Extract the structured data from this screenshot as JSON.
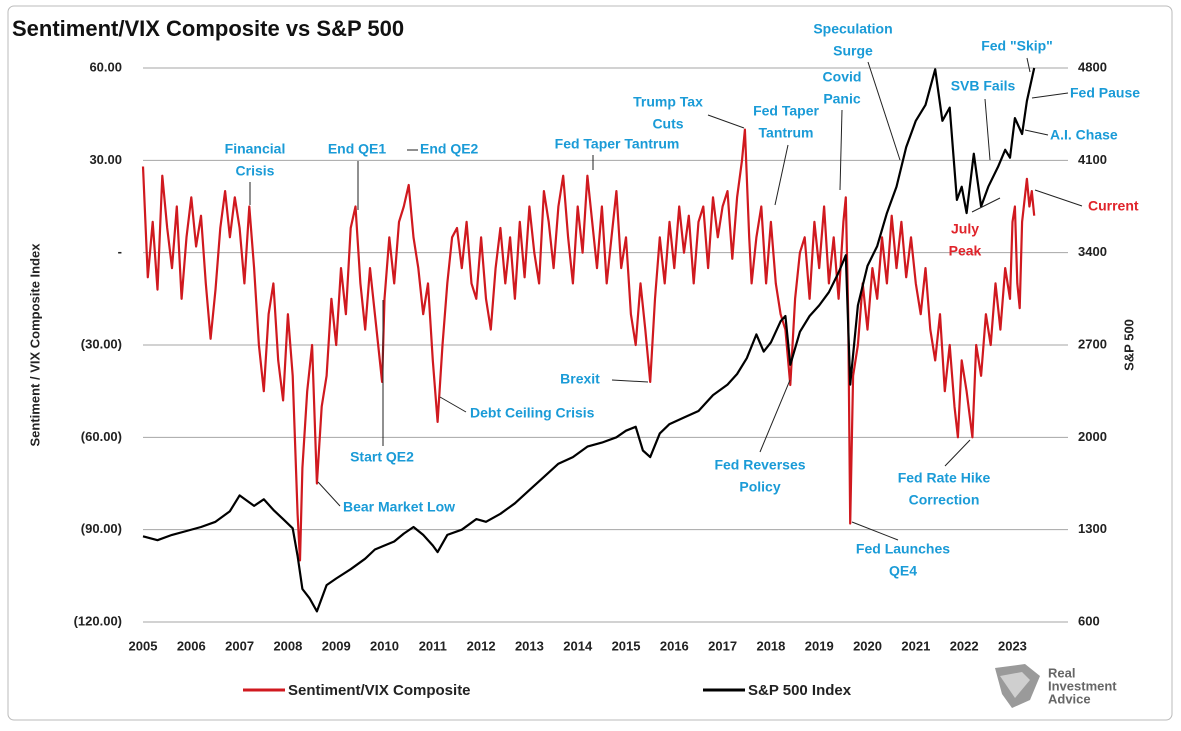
{
  "chart_data": {
    "type": "line",
    "title": "Sentiment/VIX Composite vs S&P 500",
    "ylabel": "Sentiment / VIX Composite Index",
    "y2label": "S&P 500",
    "xlim": [
      2005,
      2024.15
    ],
    "xticks": [
      2005,
      2006,
      2007,
      2008,
      2009,
      2010,
      2011,
      2012,
      2013,
      2014,
      2015,
      2016,
      2017,
      2018,
      2019,
      2020,
      2021,
      2022,
      2023
    ],
    "ylim": [
      -120,
      60
    ],
    "yticks": [
      {
        "value": 60,
        "label": "60.00"
      },
      {
        "value": 30,
        "label": "30.00"
      },
      {
        "value": 0,
        "label": "-"
      },
      {
        "value": -30,
        "label": "(30.00)"
      },
      {
        "value": -60,
        "label": "(60.00)"
      },
      {
        "value": -90,
        "label": "(90.00)"
      },
      {
        "value": -120,
        "label": "(120.00)"
      }
    ],
    "y2lim": [
      600,
      4800
    ],
    "y2ticks": [
      4800,
      4100,
      3400,
      2700,
      2000,
      1300,
      600
    ],
    "grid": true,
    "series": [
      {
        "name": "Sentiment/VIX Composite",
        "color": "#d0191f",
        "x": [
          2005.0,
          2005.1,
          2005.2,
          2005.3,
          2005.4,
          2005.5,
          2005.6,
          2005.7,
          2005.8,
          2005.9,
          2006.0,
          2006.1,
          2006.2,
          2006.3,
          2006.4,
          2006.5,
          2006.6,
          2006.7,
          2006.8,
          2006.9,
          2007.0,
          2007.1,
          2007.2,
          2007.3,
          2007.4,
          2007.5,
          2007.6,
          2007.7,
          2007.8,
          2007.9,
          2008.0,
          2008.1,
          2008.2,
          2008.25,
          2008.3,
          2008.4,
          2008.5,
          2008.6,
          2008.7,
          2008.8,
          2008.9,
          2009.0,
          2009.1,
          2009.2,
          2009.3,
          2009.4,
          2009.5,
          2009.6,
          2009.7,
          2009.8,
          2009.95,
          2010.0,
          2010.1,
          2010.2,
          2010.3,
          2010.4,
          2010.5,
          2010.6,
          2010.7,
          2010.8,
          2010.9,
          2011.0,
          2011.1,
          2011.2,
          2011.3,
          2011.4,
          2011.5,
          2011.6,
          2011.7,
          2011.8,
          2011.9,
          2012.0,
          2012.1,
          2012.2,
          2012.3,
          2012.4,
          2012.5,
          2012.6,
          2012.7,
          2012.8,
          2012.9,
          2013.0,
          2013.1,
          2013.2,
          2013.3,
          2013.4,
          2013.5,
          2013.6,
          2013.7,
          2013.8,
          2013.9,
          2014.0,
          2014.1,
          2014.2,
          2014.3,
          2014.4,
          2014.5,
          2014.6,
          2014.7,
          2014.8,
          2014.9,
          2015.0,
          2015.1,
          2015.2,
          2015.3,
          2015.4,
          2015.5,
          2015.6,
          2015.7,
          2015.8,
          2015.9,
          2016.0,
          2016.1,
          2016.2,
          2016.3,
          2016.4,
          2016.5,
          2016.6,
          2016.7,
          2016.8,
          2016.9,
          2017.0,
          2017.1,
          2017.2,
          2017.3,
          2017.4,
          2017.46,
          2017.55,
          2017.6,
          2017.7,
          2017.8,
          2017.9,
          2018.0,
          2018.1,
          2018.2,
          2018.3,
          2018.4,
          2018.5,
          2018.6,
          2018.7,
          2018.8,
          2018.9,
          2019.0,
          2019.1,
          2019.2,
          2019.3,
          2019.4,
          2019.5,
          2019.55,
          2019.6,
          2019.64,
          2019.7,
          2019.8,
          2019.9,
          2020.0,
          2020.1,
          2020.2,
          2020.3,
          2020.4,
          2020.5,
          2020.6,
          2020.7,
          2020.8,
          2020.9,
          2021.0,
          2021.1,
          2021.2,
          2021.3,
          2021.4,
          2021.5,
          2021.6,
          2021.7,
          2021.8,
          2021.87,
          2021.95,
          2022.05,
          2022.17,
          2022.25,
          2022.35,
          2022.45,
          2022.55,
          2022.65,
          2022.75,
          2022.85,
          2022.95,
          2023.0,
          2023.05,
          2023.1,
          2023.15,
          2023.2,
          2023.3,
          2023.35,
          2023.4,
          2023.45
        ],
        "values": [
          28,
          -8,
          10,
          -12,
          25,
          8,
          -5,
          15,
          -15,
          5,
          18,
          2,
          12,
          -10,
          -28,
          -12,
          8,
          20,
          5,
          18,
          8,
          -10,
          15,
          -5,
          -30,
          -45,
          -20,
          -10,
          -35,
          -48,
          -20,
          -40,
          -85,
          -100,
          -70,
          -45,
          -30,
          -75,
          -50,
          -40,
          -15,
          -30,
          -5,
          -20,
          8,
          15,
          -10,
          -25,
          -5,
          -20,
          -42,
          -15,
          5,
          -10,
          10,
          15,
          22,
          5,
          -5,
          -20,
          -10,
          -35,
          -55,
          -30,
          -10,
          5,
          8,
          -5,
          10,
          -10,
          -15,
          5,
          -15,
          -25,
          -5,
          8,
          -10,
          5,
          -15,
          10,
          -8,
          15,
          0,
          -10,
          20,
          10,
          -5,
          15,
          25,
          5,
          -10,
          15,
          0,
          25,
          10,
          -5,
          15,
          -10,
          5,
          20,
          -5,
          5,
          -20,
          -30,
          -10,
          -25,
          -42,
          -15,
          5,
          -10,
          10,
          -5,
          15,
          0,
          12,
          -10,
          10,
          15,
          -5,
          18,
          5,
          15,
          20,
          -2,
          18,
          30,
          40,
          5,
          -10,
          5,
          15,
          -10,
          10,
          -10,
          -20,
          -25,
          -43,
          -15,
          0,
          5,
          -15,
          10,
          -5,
          15,
          -10,
          5,
          -15,
          10,
          18,
          -20,
          -88,
          -40,
          -30,
          -10,
          -25,
          -5,
          -15,
          5,
          -10,
          12,
          -5,
          10,
          -8,
          5,
          -10,
          -20,
          -5,
          -25,
          -35,
          -20,
          -45,
          -30,
          -50,
          -60,
          -35,
          -45,
          -60,
          -30,
          -40,
          -20,
          -30,
          -10,
          -25,
          -5,
          -15,
          10,
          15,
          -10,
          -18,
          10,
          24,
          15,
          20,
          12
        ]
      },
      {
        "name": "S&P 500 Index",
        "color": "#000000",
        "axis": "y2",
        "x": [
          2005.0,
          2005.3,
          2005.6,
          2005.9,
          2006.2,
          2006.5,
          2006.8,
          2007.0,
          2007.3,
          2007.5,
          2007.7,
          2007.9,
          2008.1,
          2008.2,
          2008.3,
          2008.45,
          2008.6,
          2008.8,
          2009.0,
          2009.3,
          2009.6,
          2009.8,
          2010.0,
          2010.2,
          2010.4,
          2010.6,
          2010.8,
          2011.0,
          2011.1,
          2011.3,
          2011.6,
          2011.9,
          2012.1,
          2012.4,
          2012.7,
          2013.0,
          2013.3,
          2013.6,
          2013.9,
          2014.2,
          2014.5,
          2014.8,
          2015.0,
          2015.2,
          2015.35,
          2015.5,
          2015.7,
          2015.9,
          2016.2,
          2016.5,
          2016.8,
          2017.1,
          2017.3,
          2017.5,
          2017.7,
          2017.85,
          2018.0,
          2018.2,
          2018.3,
          2018.4,
          2018.6,
          2018.8,
          2019.0,
          2019.2,
          2019.4,
          2019.55,
          2019.64,
          2019.8,
          2020.0,
          2020.2,
          2020.4,
          2020.6,
          2020.8,
          2021.0,
          2021.2,
          2021.4,
          2021.55,
          2021.7,
          2021.85,
          2021.95,
          2022.05,
          2022.2,
          2022.35,
          2022.5,
          2022.7,
          2022.85,
          2022.95,
          2023.05,
          2023.2,
          2023.3,
          2023.45
        ],
        "values": [
          1250,
          1220,
          1260,
          1290,
          1320,
          1360,
          1440,
          1560,
          1480,
          1530,
          1450,
          1380,
          1310,
          1100,
          850,
          780,
          680,
          880,
          930,
          1000,
          1080,
          1150,
          1180,
          1210,
          1270,
          1320,
          1260,
          1180,
          1130,
          1260,
          1300,
          1380,
          1360,
          1420,
          1500,
          1600,
          1700,
          1800,
          1850,
          1930,
          1960,
          2000,
          2050,
          2080,
          1900,
          1850,
          2030,
          2100,
          2150,
          2200,
          2320,
          2400,
          2480,
          2600,
          2780,
          2650,
          2720,
          2880,
          2920,
          2550,
          2800,
          2920,
          3000,
          3100,
          3250,
          3380,
          2400,
          3000,
          3300,
          3450,
          3700,
          3900,
          4200,
          4400,
          4520,
          4790,
          4400,
          4500,
          3800,
          3900,
          3700,
          4150,
          3750,
          3900,
          4050,
          4180,
          4120,
          4420,
          4300,
          4550,
          4800
        ]
      }
    ],
    "annotations": [
      {
        "lines": [
          "Financial",
          "Crisis"
        ],
        "color": "#1a9bd7"
      },
      {
        "lines": [
          "End QE1"
        ],
        "color": "#1a9bd7"
      },
      {
        "lines": [
          "End QE2"
        ],
        "color": "#1a9bd7"
      },
      {
        "lines": [
          "Trump Tax",
          "Cuts"
        ],
        "color": "#1a9bd7"
      },
      {
        "lines": [
          "Fed Taper Tantrum"
        ],
        "color": "#1a9bd7"
      },
      {
        "lines": [
          "Fed Taper",
          "Tantrum"
        ],
        "color": "#1a9bd7"
      },
      {
        "lines": [
          "Speculation",
          "Surge"
        ],
        "color": "#1a9bd7"
      },
      {
        "lines": [
          "Covid",
          "Panic"
        ],
        "color": "#1a9bd7"
      },
      {
        "lines": [
          "Fed \"Skip\""
        ],
        "color": "#1a9bd7"
      },
      {
        "lines": [
          "SVB Fails"
        ],
        "color": "#1a9bd7"
      },
      {
        "lines": [
          "Fed Pause"
        ],
        "color": "#1a9bd7"
      },
      {
        "lines": [
          "A.I. Chase"
        ],
        "color": "#1a9bd7"
      },
      {
        "lines": [
          "Current"
        ],
        "color": "#e0242b"
      },
      {
        "lines": [
          "July",
          "Peak"
        ],
        "color": "#e0242b"
      },
      {
        "lines": [
          "Brexit"
        ],
        "color": "#1a9bd7"
      },
      {
        "lines": [
          "Debt Ceiling Crisis"
        ],
        "color": "#1a9bd7"
      },
      {
        "lines": [
          "Start QE2"
        ],
        "color": "#1a9bd7"
      },
      {
        "lines": [
          "Fed Reverses",
          "Policy"
        ],
        "color": "#1a9bd7"
      },
      {
        "lines": [
          "Fed Rate Hike",
          "Correction"
        ],
        "color": "#1a9bd7"
      },
      {
        "lines": [
          "Bear Market Low"
        ],
        "color": "#1a9bd7"
      },
      {
        "lines": [
          "Fed Launches",
          "QE4"
        ],
        "color": "#1a9bd7"
      }
    ],
    "logo": [
      "Real",
      "Investment",
      "Advice"
    ]
  }
}
